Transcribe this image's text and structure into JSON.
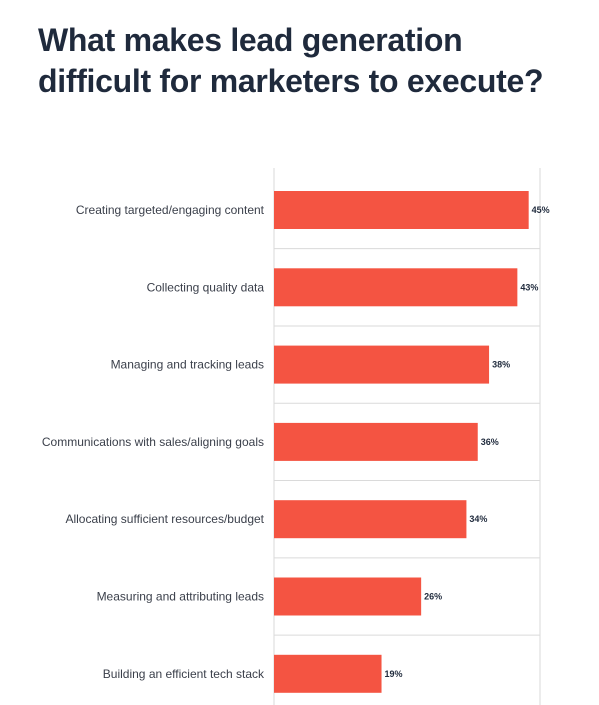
{
  "title": "What makes lead generation difficult for marketers to execute?",
  "colors": {
    "bar": "#f45442",
    "grid": "#dadada",
    "label": "#3a3f4a",
    "value": "#1f2a3c",
    "title": "#1f2a3c"
  },
  "chart_data": {
    "type": "bar",
    "orientation": "horizontal",
    "title": "What makes lead generation difficult for marketers to execute?",
    "categories": [
      "Creating targeted/engaging content",
      "Collecting quality data",
      "Managing and tracking leads",
      "Communications with sales/aligning goals",
      "Allocating sufficient resources/budget",
      "Measuring and attributing leads",
      "Building an efficient tech stack"
    ],
    "values": [
      45,
      43,
      38,
      36,
      34,
      26,
      19
    ],
    "value_labels": [
      "45%",
      "43%",
      "38%",
      "36%",
      "34%",
      "26%",
      "19%"
    ],
    "xlim": [
      0,
      47
    ],
    "xlabel": "",
    "ylabel": "",
    "grid": true
  }
}
